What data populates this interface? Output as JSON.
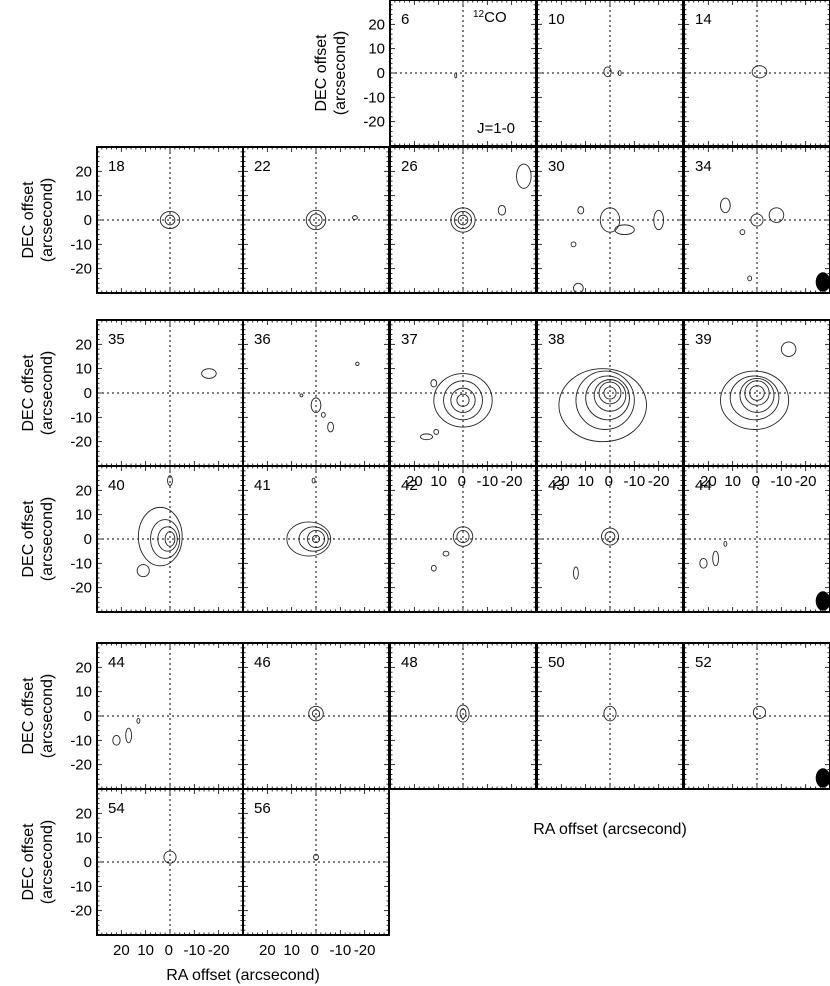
{
  "chart_data": {
    "type": "contour-channel-maps",
    "transition_label": "J=1-0",
    "line_label": {
      "superscript": "12",
      "text": "CO"
    },
    "xlabel": "RA offset (arcsecond)",
    "ylabel": "DEC offset (arcsecond)",
    "ylabel_line1": "DEC offset",
    "ylabel_line2": "(arcsecond)",
    "xlim": [
      30,
      -30
    ],
    "ylim": [
      -30,
      30
    ],
    "x_ticks": [
      "20",
      "10",
      "0",
      "-10",
      "-20"
    ],
    "y_ticks": [
      "20",
      "10",
      "0",
      "-10",
      "-20"
    ],
    "groups": [
      {
        "panels": [
          {
            "channel": "6",
            "contours": [
              {
                "cx": 3,
                "cy": -1,
                "rx": 0.4,
                "ry": 1
              }
            ]
          },
          {
            "channel": "10",
            "contours": [
              {
                "cx": 1,
                "cy": 0.5,
                "rx": 1.5,
                "ry": 2
              },
              {
                "cx": -4,
                "cy": 0,
                "rx": 0.6,
                "ry": 1
              }
            ]
          },
          {
            "channel": "14",
            "contours": [
              {
                "cx": -1,
                "cy": 0.5,
                "rx": 3,
                "ry": 2.5
              }
            ]
          },
          {
            "channel": "18",
            "contours": [
              {
                "cx": 0,
                "cy": 0,
                "rx": 4,
                "ry": 3.5
              },
              {
                "cx": 0,
                "cy": 0,
                "rx": 2,
                "ry": 2
              }
            ]
          },
          {
            "channel": "22",
            "contours": [
              {
                "cx": 0,
                "cy": 0,
                "rx": 4,
                "ry": 4
              },
              {
                "cx": 0,
                "cy": 0,
                "rx": 2.5,
                "ry": 2.5
              },
              {
                "cx": -16,
                "cy": 1,
                "rx": 1,
                "ry": 0.8
              }
            ]
          },
          {
            "channel": "26",
            "contours": [
              {
                "cx": 0,
                "cy": 0,
                "rx": 5,
                "ry": 5
              },
              {
                "cx": 0,
                "cy": 0,
                "rx": 3.5,
                "ry": 3.5
              },
              {
                "cx": 0,
                "cy": 0,
                "rx": 2,
                "ry": 2
              },
              {
                "cx": -16,
                "cy": 4,
                "rx": 1.5,
                "ry": 2
              },
              {
                "cx": -25,
                "cy": 18,
                "rx": 3,
                "ry": 5
              }
            ]
          },
          {
            "channel": "30",
            "contours": [
              {
                "cx": 0,
                "cy": 0,
                "rx": 4,
                "ry": 5
              },
              {
                "cx": -6,
                "cy": -4,
                "rx": 4,
                "ry": 2
              },
              {
                "cx": -20,
                "cy": 0,
                "rx": 2,
                "ry": 4
              },
              {
                "cx": 12,
                "cy": 4,
                "rx": 1.2,
                "ry": 1.5
              },
              {
                "cx": 15,
                "cy": -10,
                "rx": 1,
                "ry": 1
              },
              {
                "cx": 13,
                "cy": -28,
                "rx": 2,
                "ry": 2
              }
            ]
          },
          {
            "channel": "34",
            "contours": [
              {
                "cx": 0,
                "cy": 0,
                "rx": 2.5,
                "ry": 2.5
              },
              {
                "cx": 13,
                "cy": 6,
                "rx": 2,
                "ry": 3
              },
              {
                "cx": -8,
                "cy": 2,
                "rx": 3,
                "ry": 3
              },
              {
                "cx": 6,
                "cy": -5,
                "rx": 1,
                "ry": 1
              },
              {
                "cx": 3,
                "cy": -24,
                "rx": 0.8,
                "ry": 1
              }
            ]
          }
        ]
      },
      {
        "panels": [
          {
            "channel": "35",
            "contours": [
              {
                "cx": -16,
                "cy": 8,
                "rx": 3,
                "ry": 2
              }
            ]
          },
          {
            "channel": "36",
            "contours": [
              {
                "cx": 0,
                "cy": -5,
                "rx": 2,
                "ry": 3
              },
              {
                "cx": -6,
                "cy": -14,
                "rx": 1.2,
                "ry": 2
              },
              {
                "cx": -3,
                "cy": -9,
                "rx": 0.8,
                "ry": 1
              },
              {
                "cx": -17,
                "cy": 12,
                "rx": 0.7,
                "ry": 0.7
              },
              {
                "cx": 6,
                "cy": -1,
                "rx": 0.6,
                "ry": 0.6
              }
            ]
          },
          {
            "channel": "37",
            "contours": [
              {
                "cx": 0,
                "cy": -3,
                "rx": 12,
                "ry": 11
              },
              {
                "cx": 0,
                "cy": -3,
                "rx": 8,
                "ry": 8
              },
              {
                "cx": 0,
                "cy": -3,
                "rx": 5,
                "ry": 5
              },
              {
                "cx": 0,
                "cy": -3,
                "rx": 2.5,
                "ry": 2.5
              },
              {
                "cx": 15,
                "cy": -18,
                "rx": 2.5,
                "ry": 1.2
              },
              {
                "cx": 11,
                "cy": -16,
                "rx": 1,
                "ry": 1
              },
              {
                "cx": 12,
                "cy": 4,
                "rx": 1.2,
                "ry": 1.5
              }
            ]
          },
          {
            "channel": "38",
            "contours": [
              {
                "cx": 3,
                "cy": -5,
                "rx": 18,
                "ry": 15
              },
              {
                "cx": 2,
                "cy": -3,
                "rx": 12,
                "ry": 12
              },
              {
                "cx": 1,
                "cy": -2,
                "rx": 9,
                "ry": 9
              },
              {
                "cx": 0,
                "cy": -1,
                "rx": 6.5,
                "ry": 6.5
              },
              {
                "cx": 0,
                "cy": 0,
                "rx": 4.5,
                "ry": 4.5
              },
              {
                "cx": 0,
                "cy": 0,
                "rx": 2.5,
                "ry": 2.5
              }
            ]
          },
          {
            "channel": "39",
            "contours": [
              {
                "cx": 1,
                "cy": -3,
                "rx": 14,
                "ry": 12
              },
              {
                "cx": 1,
                "cy": -2,
                "rx": 10,
                "ry": 9
              },
              {
                "cx": 0,
                "cy": -1,
                "rx": 7,
                "ry": 7
              },
              {
                "cx": 0,
                "cy": 0,
                "rx": 5,
                "ry": 5
              },
              {
                "cx": 0,
                "cy": 0,
                "rx": 3,
                "ry": 3
              },
              {
                "cx": -13,
                "cy": 18,
                "rx": 3,
                "ry": 3
              }
            ]
          },
          {
            "channel": "40",
            "contours": [
              {
                "cx": 4,
                "cy": 1,
                "rx": 9,
                "ry": 12
              },
              {
                "cx": 2,
                "cy": 0,
                "rx": 6,
                "ry": 8
              },
              {
                "cx": 1,
                "cy": 0,
                "rx": 4,
                "ry": 5
              },
              {
                "cx": 0,
                "cy": 0,
                "rx": 2,
                "ry": 3
              },
              {
                "cx": 11,
                "cy": -13,
                "rx": 2.5,
                "ry": 2.5
              },
              {
                "cx": 0,
                "cy": 24,
                "rx": 1,
                "ry": 2
              }
            ]
          },
          {
            "channel": "41",
            "contours": [
              {
                "cx": 3,
                "cy": 0,
                "rx": 9,
                "ry": 7
              },
              {
                "cx": 1,
                "cy": 0,
                "rx": 6,
                "ry": 5
              },
              {
                "cx": 0,
                "cy": 0,
                "rx": 3.5,
                "ry": 3.5
              },
              {
                "cx": 0,
                "cy": 0,
                "rx": 1.5,
                "ry": 1.5
              },
              {
                "cx": 1,
                "cy": 24,
                "rx": 0.6,
                "ry": 1
              }
            ]
          },
          {
            "channel": "42",
            "contours": [
              {
                "cx": 0,
                "cy": 1,
                "rx": 4,
                "ry": 4
              },
              {
                "cx": 0,
                "cy": 1,
                "rx": 2.5,
                "ry": 2.5
              },
              {
                "cx": 7,
                "cy": -6,
                "rx": 1.2,
                "ry": 1
              },
              {
                "cx": 12,
                "cy": -12,
                "rx": 1,
                "ry": 1.2
              }
            ]
          },
          {
            "channel": "43",
            "contours": [
              {
                "cx": 0,
                "cy": 1,
                "rx": 3.5,
                "ry": 3.5
              },
              {
                "cx": 0,
                "cy": 1,
                "rx": 2,
                "ry": 2
              },
              {
                "cx": 14,
                "cy": -14,
                "rx": 1,
                "ry": 2.5
              }
            ]
          },
          {
            "channel": "44",
            "contours": [
              {
                "cx": 22,
                "cy": -10,
                "rx": 1.5,
                "ry": 2
              },
              {
                "cx": 17,
                "cy": -8,
                "rx": 1.2,
                "ry": 3
              },
              {
                "cx": 13,
                "cy": -2,
                "rx": 0.6,
                "ry": 1
              }
            ]
          }
        ]
      },
      {
        "panels": [
          {
            "channel": "44",
            "contours": [
              {
                "cx": 22,
                "cy": -10,
                "rx": 1.5,
                "ry": 2
              },
              {
                "cx": 17,
                "cy": -8,
                "rx": 1.2,
                "ry": 3
              },
              {
                "cx": 13,
                "cy": -2,
                "rx": 0.6,
                "ry": 1
              }
            ]
          },
          {
            "channel": "46",
            "contours": [
              {
                "cx": 0,
                "cy": 1,
                "rx": 3,
                "ry": 3
              },
              {
                "cx": 0,
                "cy": 1,
                "rx": 1.5,
                "ry": 1.5
              }
            ]
          },
          {
            "channel": "48",
            "contours": [
              {
                "cx": 0,
                "cy": 1,
                "rx": 2.5,
                "ry": 3.5
              },
              {
                "cx": 0,
                "cy": 1,
                "rx": 1.2,
                "ry": 2
              }
            ]
          },
          {
            "channel": "50",
            "contours": [
              {
                "cx": 0,
                "cy": 1,
                "rx": 2.5,
                "ry": 3
              }
            ]
          },
          {
            "channel": "52",
            "contours": [
              {
                "cx": -1,
                "cy": 1.5,
                "rx": 2.5,
                "ry": 2.5
              }
            ]
          },
          {
            "channel": "54",
            "contours": [
              {
                "cx": 0,
                "cy": 2,
                "rx": 2.5,
                "ry": 2.5
              }
            ]
          },
          {
            "channel": "56",
            "contours": [
              {
                "cx": 0,
                "cy": 2,
                "rx": 1,
                "ry": 1.2
              }
            ]
          }
        ]
      }
    ],
    "beam": {
      "major_arcsec": 4,
      "minor_arcsec": 3
    }
  }
}
